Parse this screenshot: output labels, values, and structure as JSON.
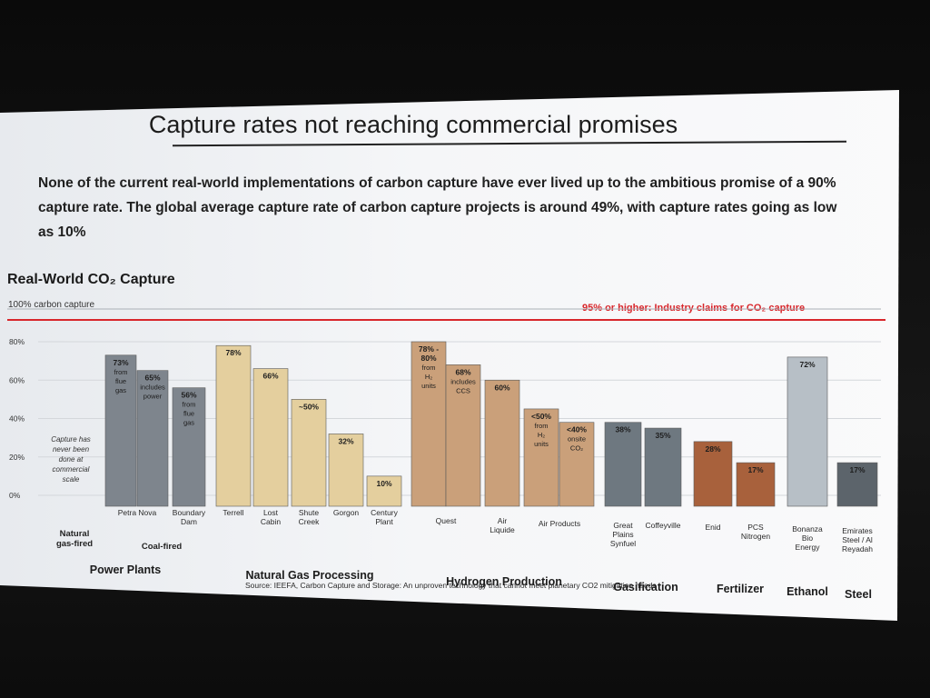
{
  "slide": {
    "title": "Capture rates not reaching commercial promises",
    "intro": "None of the current real-world implementations of carbon capture have ever lived up to the ambitious promise of a 90% capture rate. The global average capture rate of carbon capture projects is around 49%, with capture rates going as low as 10%",
    "source": "Source: IEEFA, Carbon Capture and Storage: An unproven technology that cannot meet planetary CO2 mitigation needs"
  },
  "colors": {
    "power": "#7e858d",
    "gas": "#e4cf9e",
    "hydrogen": "#caa07a",
    "gasification": "#6e7880",
    "fertilizer": "#a8613c",
    "ethanol": "#b7bfc6",
    "steel": "#5c646b",
    "reference": "#d8262b"
  },
  "chart_data": {
    "type": "bar",
    "title": "Real-World CO₂ Capture",
    "ylabel": "",
    "xlabel": "",
    "ylim": [
      0,
      80
    ],
    "yticks": [
      "0%",
      "20%",
      "40%",
      "60%",
      "80%"
    ],
    "ref_left": "100% carbon capture",
    "ref_right": "95% or higher: Industry claims for CO₂ capture",
    "no_data_note": "Capture has never been done at commercial scale",
    "bars": [
      {
        "name": "Petra Nova",
        "value": 73,
        "label": "73%",
        "note": "from flue gas",
        "group": "power"
      },
      {
        "name": "Petra Nova",
        "value": 65,
        "label": "65%",
        "note": "includes power",
        "group": "power"
      },
      {
        "name": "Boundary Dam",
        "value": 56,
        "label": "56%",
        "note": "from flue gas",
        "group": "power"
      },
      {
        "name": "Terrell",
        "value": 78,
        "label": "78%",
        "note": "",
        "group": "gas"
      },
      {
        "name": "Lost Cabin",
        "value": 66,
        "label": "66%",
        "note": "",
        "group": "gas"
      },
      {
        "name": "Shute Creek",
        "value": 50,
        "label": "~50%",
        "note": "",
        "group": "gas"
      },
      {
        "name": "Gorgon",
        "value": 32,
        "label": "32%",
        "note": "",
        "group": "gas"
      },
      {
        "name": "Century Plant",
        "value": 10,
        "label": "10%",
        "note": "",
        "group": "gas"
      },
      {
        "name": "Quest",
        "value": 80,
        "label": "78% - 80%",
        "note": "from H₂ units",
        "group": "hydrogen"
      },
      {
        "name": "Quest",
        "value": 68,
        "label": "68%",
        "note": "includes CCS",
        "group": "hydrogen"
      },
      {
        "name": "Air Liquide",
        "value": 60,
        "label": "60%",
        "note": "",
        "group": "hydrogen"
      },
      {
        "name": "Air Products",
        "value": 45,
        "label": "<50%",
        "note": "from H₂ units",
        "group": "hydrogen"
      },
      {
        "name": "Air Products",
        "value": 38,
        "label": "<40%",
        "note": "onsite CO₂",
        "group": "hydrogen"
      },
      {
        "name": "Great Plains Synfuel",
        "value": 38,
        "label": "38%",
        "note": "",
        "group": "gasification"
      },
      {
        "name": "Coffeyville",
        "value": 35,
        "label": "35%",
        "note": "",
        "group": "gasification"
      },
      {
        "name": "Enid",
        "value": 28,
        "label": "28%",
        "note": "",
        "group": "fertilizer"
      },
      {
        "name": "PCS Nitrogen",
        "value": 17,
        "label": "17%",
        "note": "",
        "group": "fertilizer"
      },
      {
        "name": "Bonanza Bio Energy",
        "value": 72,
        "label": "72%",
        "note": "",
        "group": "ethanol"
      },
      {
        "name": "Emirates Steel / Al Reyadah",
        "value": 17,
        "label": "17%",
        "note": "",
        "group": "steel"
      }
    ],
    "plant_labels": [
      "Petra Nova",
      "Boundary Dam",
      "Terrell",
      "Lost Cabin",
      "Shute Creek",
      "Gorgon",
      "Century Plant",
      "Quest",
      "Air Liquide",
      "Air Products",
      "Great Plains Synfuel",
      "Coffeyville",
      "Enid",
      "PCS Nitrogen",
      "Bonanza Bio Energy",
      "Emirates Steel / Al Reyadah"
    ],
    "subgroups": [
      "Natural gas-fired",
      "Coal-fired"
    ],
    "categories": [
      "Power Plants",
      "Natural Gas Processing",
      "Hydrogen Production",
      "Gasification",
      "Fertilizer",
      "Ethanol",
      "Steel"
    ]
  }
}
